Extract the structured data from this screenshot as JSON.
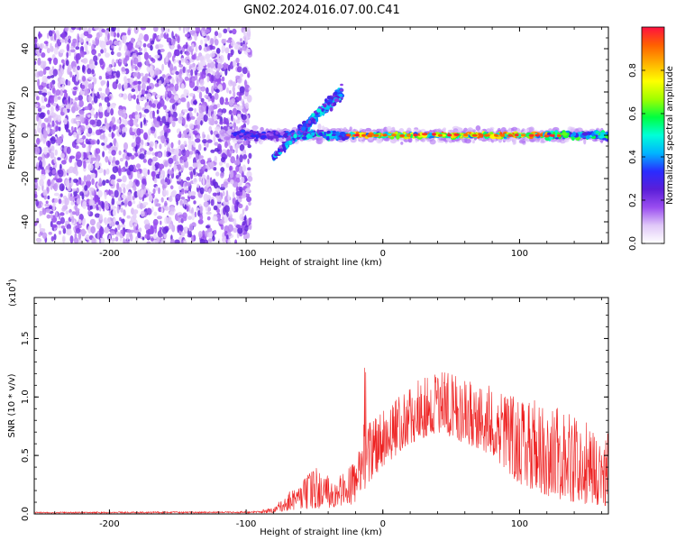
{
  "title": "GN02.2024.016.07.00.C41",
  "colors": {
    "snr_line": "#ee2222",
    "axis": "#000000"
  },
  "chart_data": [
    {
      "type": "heatmap",
      "title": "GN02.2024.016.07.00.C41",
      "xlabel": "Height of straight line (km)",
      "ylabel": "Frequency (Hz)",
      "xlim": [
        -255,
        165
      ],
      "ylim": [
        -50,
        50
      ],
      "x_ticks": [
        -200,
        -100,
        0,
        100
      ],
      "x_tick_labels": [
        "-200",
        "-100",
        "0",
        "100"
      ],
      "y_ticks": [
        40,
        20,
        0,
        -20,
        -40
      ],
      "y_tick_labels": [
        "40",
        "20",
        "0",
        "-20",
        "-40"
      ],
      "colorbar": {
        "label": "Normalized spectral amplitude",
        "range": [
          0,
          1
        ],
        "ticks": [
          0.0,
          0.2,
          0.4,
          0.6,
          0.8
        ],
        "tick_labels": [
          "0.0",
          "0.2",
          "0.4",
          "0.6",
          "0.8"
        ],
        "colormap": [
          "#ffffff",
          "#e0c8f8",
          "#9a4df0",
          "#5a1ed8",
          "#2a2cff",
          "#00b4ff",
          "#00ffd8",
          "#00ff40",
          "#a0ff00",
          "#ffff00",
          "#ffb000",
          "#ff6000",
          "#ff1040"
        ]
      },
      "features": {
        "broadband_noise_x_range": [
          -255,
          -105
        ],
        "signal_band_center_hz": 0,
        "signal_band_halfwidth_hz": 3,
        "signal_start_km": -110,
        "high_amplitude_start_km": -25,
        "chirp_branch_x_range": [
          -80,
          -30
        ],
        "chirp_branch_y_range": [
          -10,
          20
        ]
      }
    },
    {
      "type": "line",
      "xlabel": "Height of straight line (km)",
      "ylabel": "SNR (10 * v/v)",
      "multiplier_label": "(x10",
      "multiplier_exponent": "4",
      "multiplier_close": ")",
      "xlim": [
        -255,
        165
      ],
      "ylim": [
        0,
        18500
      ],
      "x_ticks": [
        -200,
        -100,
        0,
        100
      ],
      "x_tick_labels": [
        "-200",
        "-100",
        "0",
        "100"
      ],
      "y_ticks": [
        0,
        5000,
        10000,
        15000
      ],
      "y_tick_labels": [
        "0.0",
        "0.5",
        "1.0",
        "1.5"
      ],
      "series": [
        {
          "color": "#ee2222",
          "envelope": [
            [
              -255,
              200
            ],
            [
              -200,
              220
            ],
            [
              -150,
              240
            ],
            [
              -100,
              260
            ],
            [
              -90,
              300
            ],
            [
              -80,
              600
            ],
            [
              -70,
              1800
            ],
            [
              -60,
              2800
            ],
            [
              -50,
              4000
            ],
            [
              -40,
              3500
            ],
            [
              -30,
              3600
            ],
            [
              -20,
              4500
            ],
            [
              -14,
              7000
            ],
            [
              -13,
              18500
            ],
            [
              -12,
              8000
            ],
            [
              -5,
              8500
            ],
            [
              0,
              9000
            ],
            [
              10,
              9800
            ],
            [
              20,
              11000
            ],
            [
              40,
              12500
            ],
            [
              60,
              11500
            ],
            [
              80,
              11000
            ],
            [
              100,
              10000
            ],
            [
              120,
              9500
            ],
            [
              140,
              8500
            ],
            [
              165,
              7000
            ]
          ],
          "floor": [
            [
              -255,
              50
            ],
            [
              -100,
              60
            ],
            [
              -80,
              100
            ],
            [
              -60,
              400
            ],
            [
              -40,
              500
            ],
            [
              -20,
              800
            ],
            [
              -10,
              2500
            ],
            [
              0,
              4000
            ],
            [
              20,
              6000
            ],
            [
              40,
              7000
            ],
            [
              60,
              6000
            ],
            [
              80,
              5000
            ],
            [
              100,
              2500
            ],
            [
              120,
              1500
            ],
            [
              140,
              1000
            ],
            [
              165,
              500
            ]
          ]
        }
      ]
    }
  ]
}
